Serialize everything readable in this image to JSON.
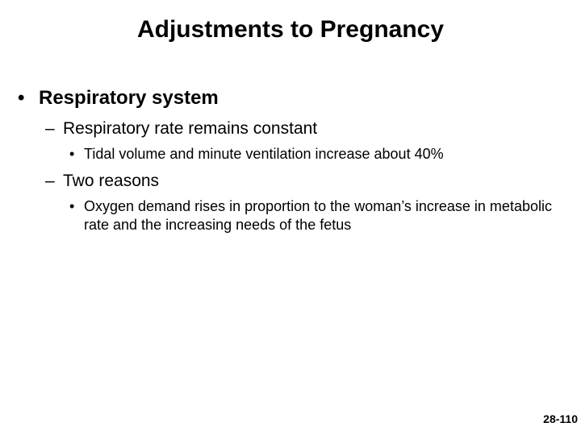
{
  "background_color": "#ffffff",
  "text_color": "#000000",
  "title": {
    "text": "Adjustments to Pregnancy",
    "fontsize": 30,
    "fontweight": "bold"
  },
  "content": {
    "l1": {
      "bullet_glyph": "•",
      "fontsize": 24,
      "items": {
        "0": {
          "text": "Respiratory system",
          "sub": {
            "dash_glyph": "–",
            "fontsize": 21,
            "items": {
              "0": {
                "text": "Respiratory rate remains constant",
                "sub": {
                  "dot_glyph": "•",
                  "fontsize": 18,
                  "items": {
                    "0": {
                      "text": "Tidal volume and minute ventilation increase about 40%"
                    }
                  }
                }
              },
              "1": {
                "text": "Two reasons",
                "sub": {
                  "dot_glyph": "•",
                  "fontsize": 18,
                  "items": {
                    "0": {
                      "text": "Oxygen demand rises in proportion to the woman’s increase in metabolic rate and the increasing needs of the fetus"
                    }
                  }
                }
              }
            }
          }
        }
      }
    }
  },
  "page_number": {
    "text": "28-110",
    "fontsize": 14
  }
}
